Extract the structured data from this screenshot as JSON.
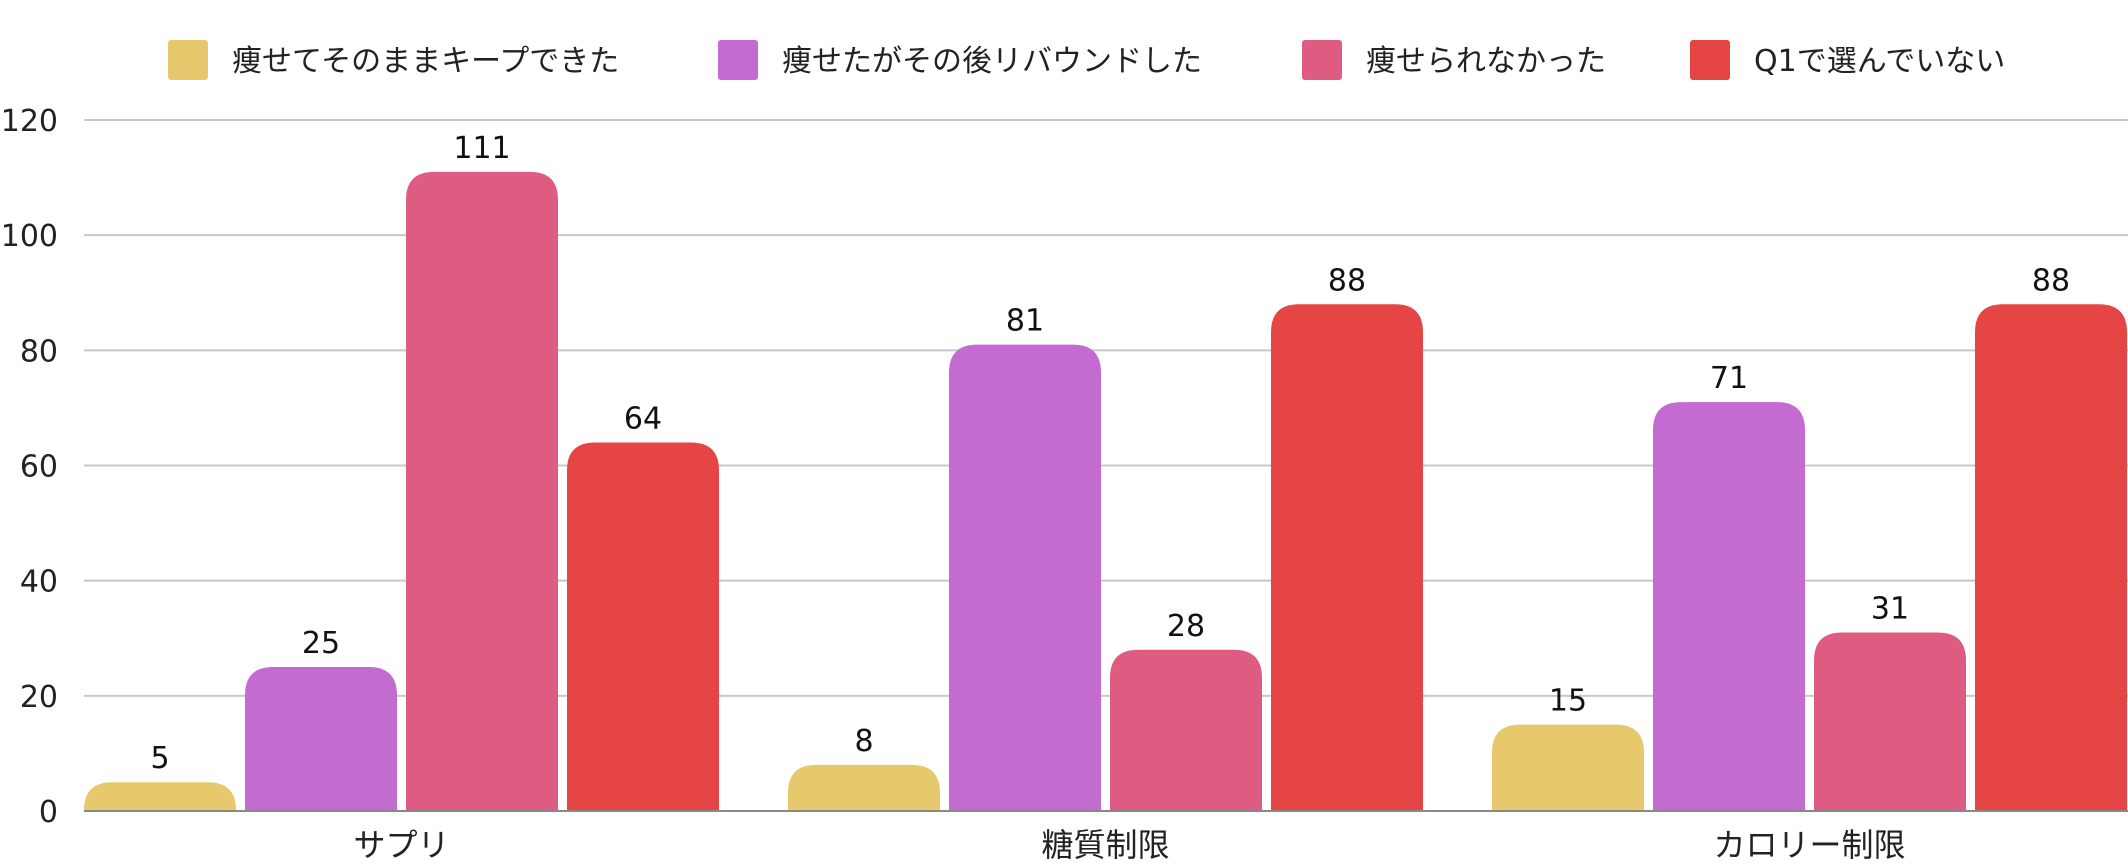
{
  "chart_data": {
    "type": "bar",
    "title": "",
    "xlabel": "",
    "ylabel": "",
    "categories": [
      "サプリ",
      "糖質制限",
      "カロリー制限"
    ],
    "series": [
      {
        "name": "痩せてそのままキープできた",
        "color": "#E8C86C",
        "values": [
          5,
          8,
          15
        ]
      },
      {
        "name": "痩せたがその後リバウンドした",
        "color": "#C46BD1",
        "values": [
          25,
          81,
          71
        ]
      },
      {
        "name": "痩せられなかった",
        "color": "#DE5C82",
        "values": [
          111,
          28,
          31
        ]
      },
      {
        "name": "Q1で選んでいない",
        "color": "#E64545",
        "values": [
          64,
          88,
          88
        ]
      }
    ],
    "ylim": [
      0,
      120
    ],
    "yticks": [
      0,
      20,
      40,
      60,
      80,
      100,
      120
    ],
    "grid": true,
    "legend_position": "top",
    "data_labels": true
  }
}
